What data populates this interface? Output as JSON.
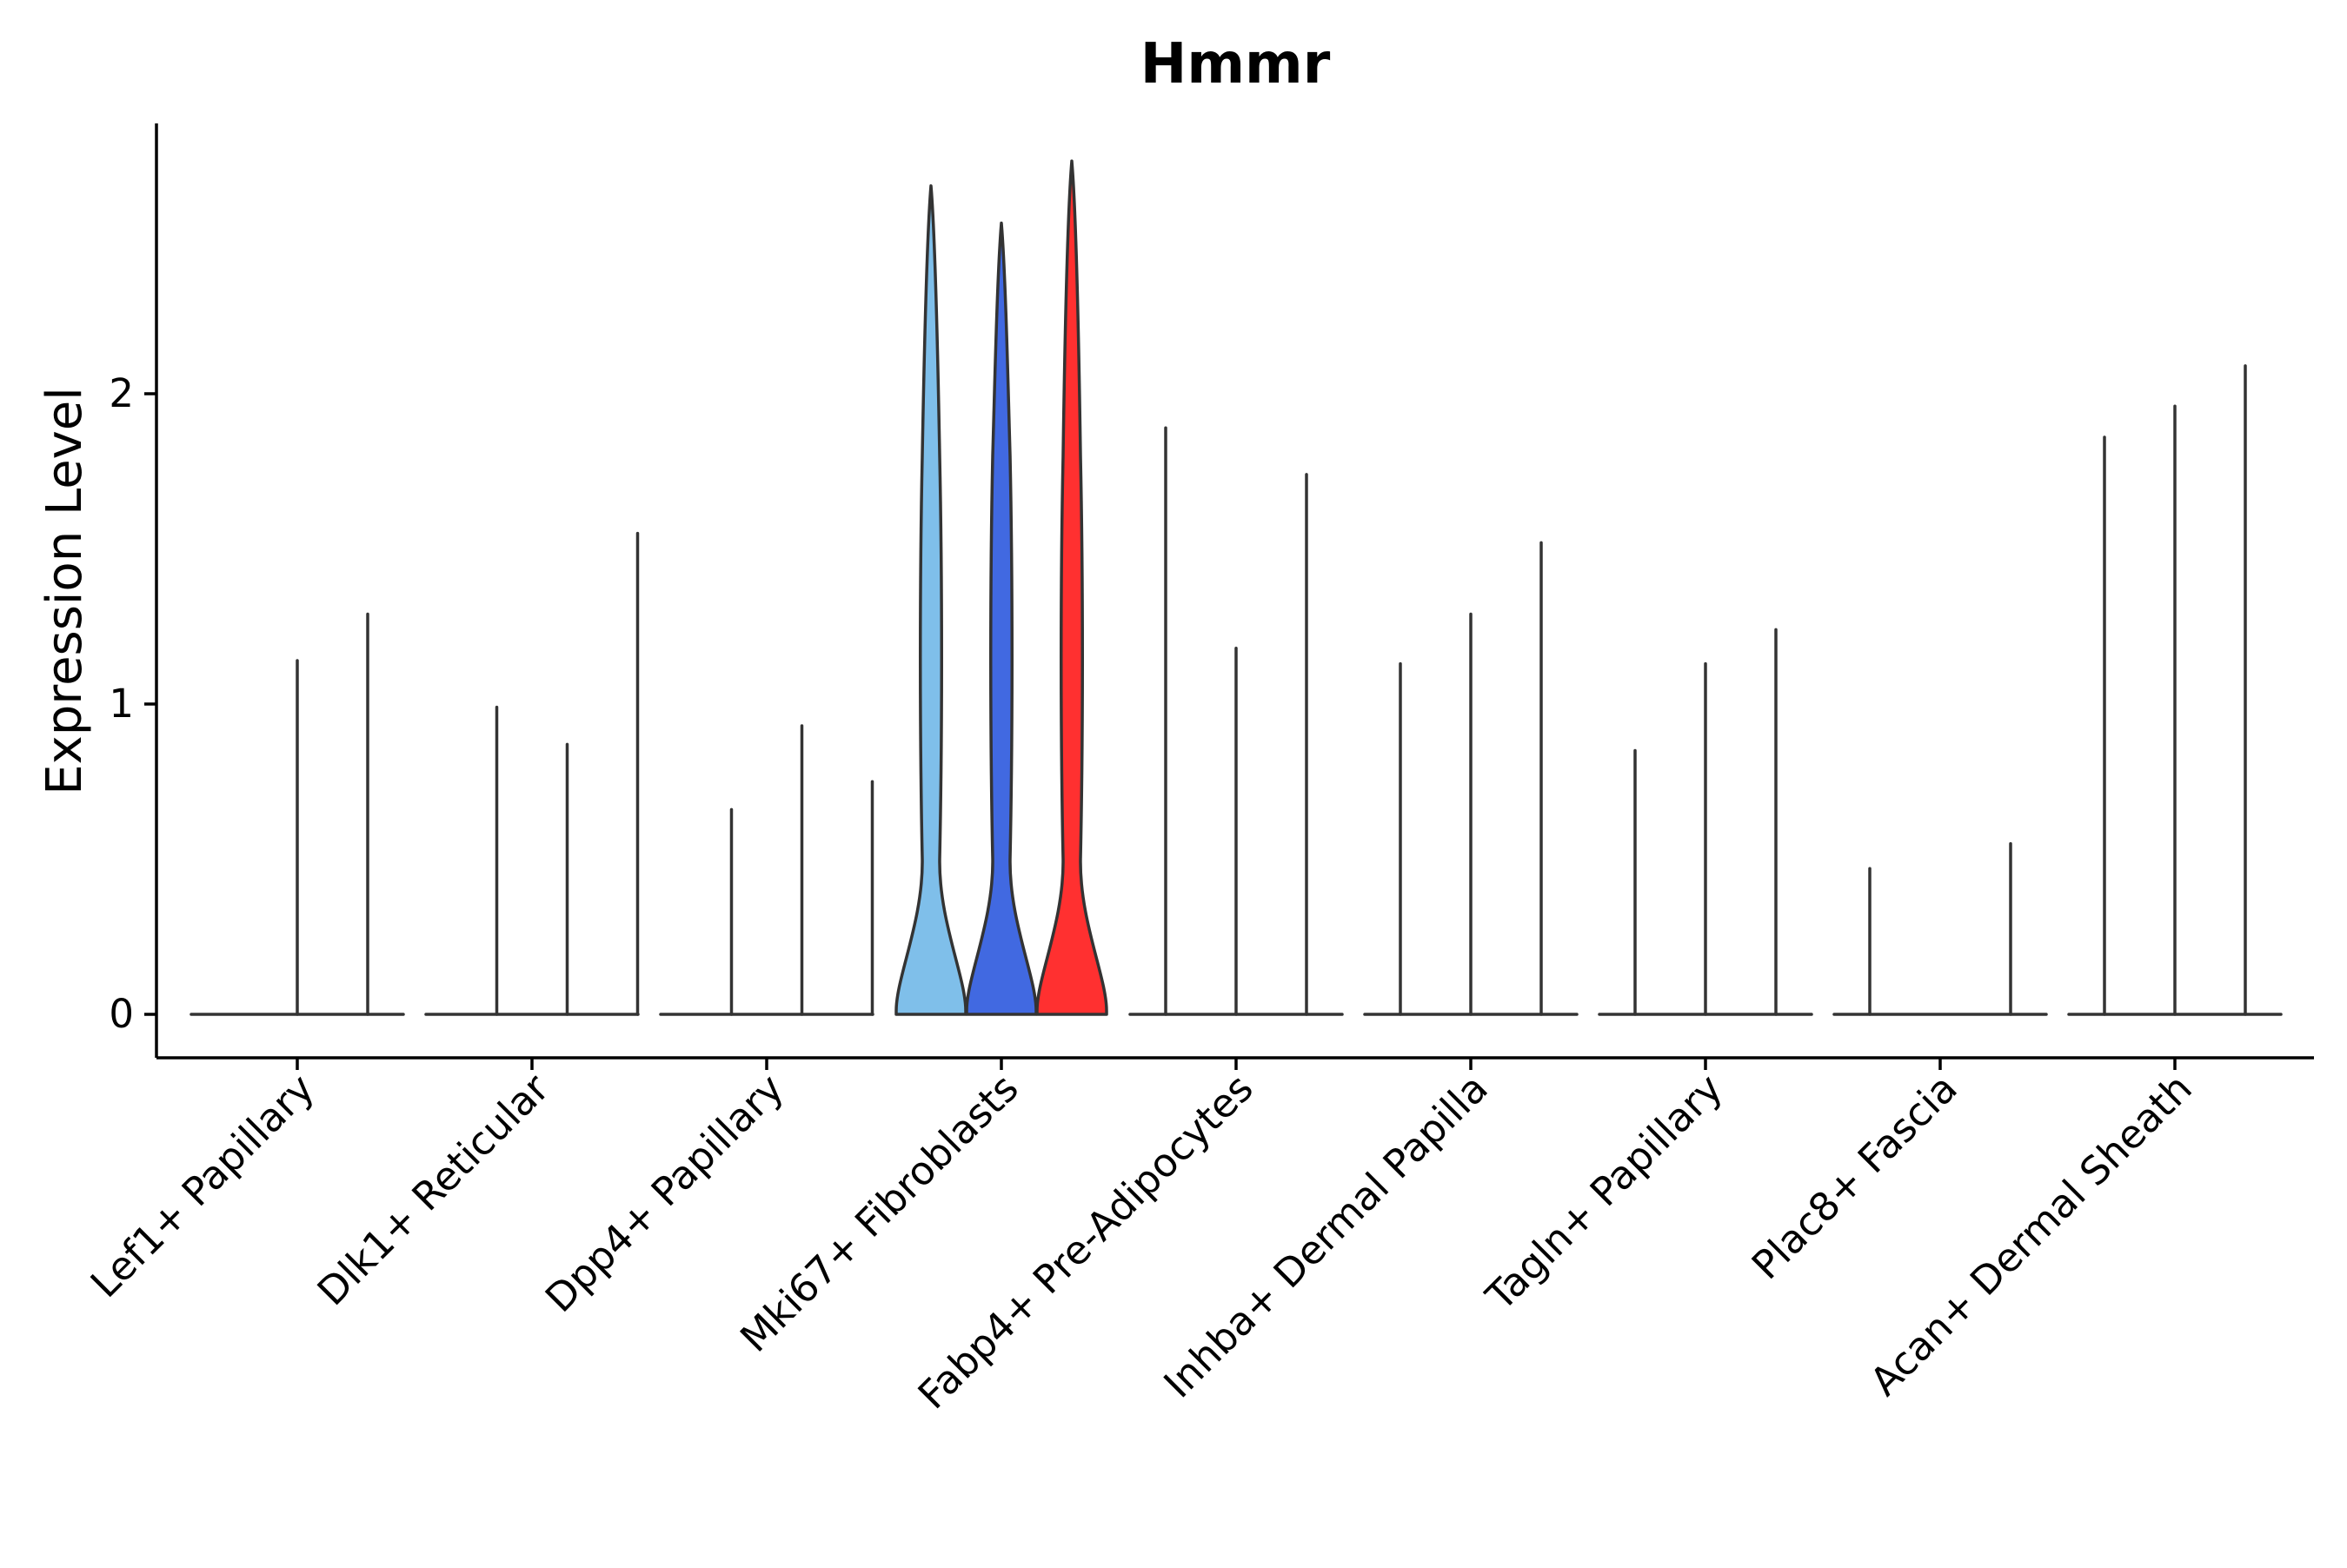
{
  "chart_data": {
    "type": "violin",
    "title": "Hmmr",
    "ylabel": "Expression Level",
    "xlabel": "",
    "ylim": [
      -0.14,
      2.9
    ],
    "yticks": [
      0,
      1,
      2
    ],
    "grid": false,
    "legend": "none",
    "categories": [
      "Lef1+ Papillary",
      "Dlk1+ Reticular",
      "Dpp4+ Papillary",
      "Mki67+ Fibroblasts",
      "Fabp4+ Pre-Adipocytes",
      "Inhba+ Dermal Papilla",
      "Tagln+ Papillary",
      "Plac8+ Fascia",
      "Acan+ Dermal Sheath"
    ],
    "violins": [
      {
        "category": 0,
        "max": 0,
        "filled": false
      },
      {
        "category": 0,
        "max": 1.14,
        "filled": false
      },
      {
        "category": 0,
        "max": 1.29,
        "filled": false
      },
      {
        "category": 1,
        "max": 0,
        "filled": false
      },
      {
        "category": 1,
        "max": 0.99,
        "filled": false
      },
      {
        "category": 1,
        "max": 0.87,
        "filled": false
      },
      {
        "category": 1,
        "max": 1.55,
        "filled": false
      },
      {
        "category": 2,
        "max": 0,
        "filled": false
      },
      {
        "category": 2,
        "max": 0.66,
        "filled": false
      },
      {
        "category": 2,
        "max": 0.93,
        "filled": false
      },
      {
        "category": 2,
        "max": 0.75,
        "filled": false
      },
      {
        "category": 3,
        "max": 2.67,
        "filled": true,
        "color": "#7fbfea"
      },
      {
        "category": 3,
        "max": 2.55,
        "filled": true,
        "color": "#4169e1"
      },
      {
        "category": 3,
        "max": 2.75,
        "filled": true,
        "color": "#ff3030"
      },
      {
        "category": 4,
        "max": 1.89,
        "filled": false
      },
      {
        "category": 4,
        "max": 1.18,
        "filled": false
      },
      {
        "category": 4,
        "max": 1.74,
        "filled": false
      },
      {
        "category": 5,
        "max": 1.13,
        "filled": false
      },
      {
        "category": 5,
        "max": 1.29,
        "filled": false
      },
      {
        "category": 5,
        "max": 1.52,
        "filled": false
      },
      {
        "category": 6,
        "max": 0.85,
        "filled": false
      },
      {
        "category": 6,
        "max": 1.13,
        "filled": false
      },
      {
        "category": 6,
        "max": 1.24,
        "filled": false
      },
      {
        "category": 7,
        "max": 0.47,
        "filled": false
      },
      {
        "category": 7,
        "max": 0,
        "filled": false
      },
      {
        "category": 7,
        "max": 0.55,
        "filled": false
      },
      {
        "category": 8,
        "max": 1.86,
        "filled": false
      },
      {
        "category": 8,
        "max": 1.96,
        "filled": false
      },
      {
        "category": 8,
        "max": 2.09,
        "filled": false
      }
    ],
    "colors": {
      "axis": "#000000",
      "outline": "#333333"
    }
  }
}
